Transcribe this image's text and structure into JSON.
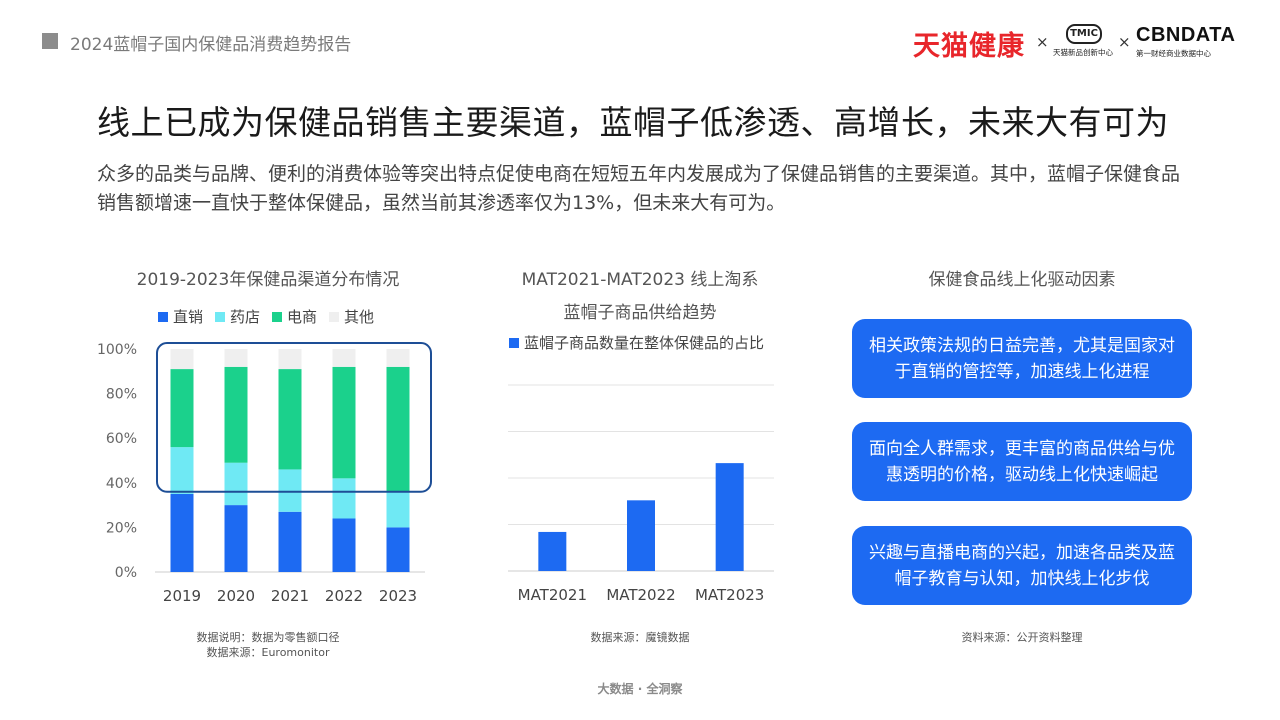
{
  "header": {
    "report_title": "2024蓝帽子国内保健品消费趋势报告",
    "logo_tmall": "天猫健康",
    "logo_sep": "×",
    "logo_tmic": "TMIC",
    "logo_tmic_sub": "天猫新品创新中心",
    "logo_cbn": "CBNDATA",
    "logo_cbn_sub": "第一财经商业数据中心"
  },
  "main_title": "线上已成为保健品销售主要渠道，蓝帽子低渗透、高增长，未来大有可为",
  "description": "众多的品类与品牌、便利的消费体验等突出特点促使电商在短短五年内发展成为了保健品销售的主要渠道。其中，蓝帽子保健食品销售额增速一直快于整体保健品，虽然当前其渗透率仅为13%，但未来大有可为。",
  "chart1": {
    "title": "2019-2023年保健品渠道分布情况",
    "note_line1": "数据说明：数据为零售额口径",
    "note_line2": "数据来源：Euromonitor"
  },
  "chart2": {
    "title_line1": "MAT2021-MAT2023 线上淘系",
    "title_line2": "蓝帽子商品供给趋势",
    "note": "数据来源：魔镜数据"
  },
  "drivers": {
    "title": "保健食品线上化驱动因素",
    "items": [
      "相关政策法规的日益完善，尤其是国家对于直销的管控等，加速线上化进程",
      "面向全人群需求，更丰富的商品供给与优惠透明的价格，驱动线上化快速崛起",
      "兴趣与直播电商的兴起，加速各品类及蓝帽子教育与认知，加快线上化步伐"
    ],
    "note": "资料来源：公开资料整理",
    "box_color": "#1d6af2"
  },
  "footer": "大数据 · 全洞察",
  "chart_data": [
    {
      "type": "bar",
      "stacked": true,
      "percent": true,
      "title": "2019-2023年保健品渠道分布情况",
      "categories": [
        "2019",
        "2020",
        "2021",
        "2022",
        "2023"
      ],
      "series": [
        {
          "name": "直销",
          "color": "#1d6af2",
          "values": [
            35,
            30,
            27,
            24,
            20
          ]
        },
        {
          "name": "药店",
          "color": "#6fe9f4",
          "values": [
            21,
            19,
            19,
            18,
            16
          ]
        },
        {
          "name": "电商",
          "color": "#1bd18c",
          "values": [
            35,
            43,
            45,
            50,
            56
          ]
        },
        {
          "name": "其他",
          "color": "#efefef",
          "values": [
            9,
            8,
            9,
            8,
            8
          ]
        }
      ],
      "ylim": [
        0,
        100
      ],
      "yticks": [
        "0%",
        "20%",
        "40%",
        "60%",
        "80%",
        "100%"
      ],
      "highlight_series": [
        "电商",
        "其他"
      ],
      "highlight_color": "#1d4e96"
    },
    {
      "type": "bar",
      "title": "MAT2021-MAT2023 线上淘系 蓝帽子商品供给趋势",
      "categories": [
        "MAT2021",
        "MAT2022",
        "MAT2023"
      ],
      "series": [
        {
          "name": "蓝帽子商品数量在整体保健品的占比",
          "color": "#1d6af2",
          "values": [
            21,
            38,
            58
          ]
        }
      ],
      "ylim": [
        0,
        100
      ],
      "grid": true
    }
  ]
}
